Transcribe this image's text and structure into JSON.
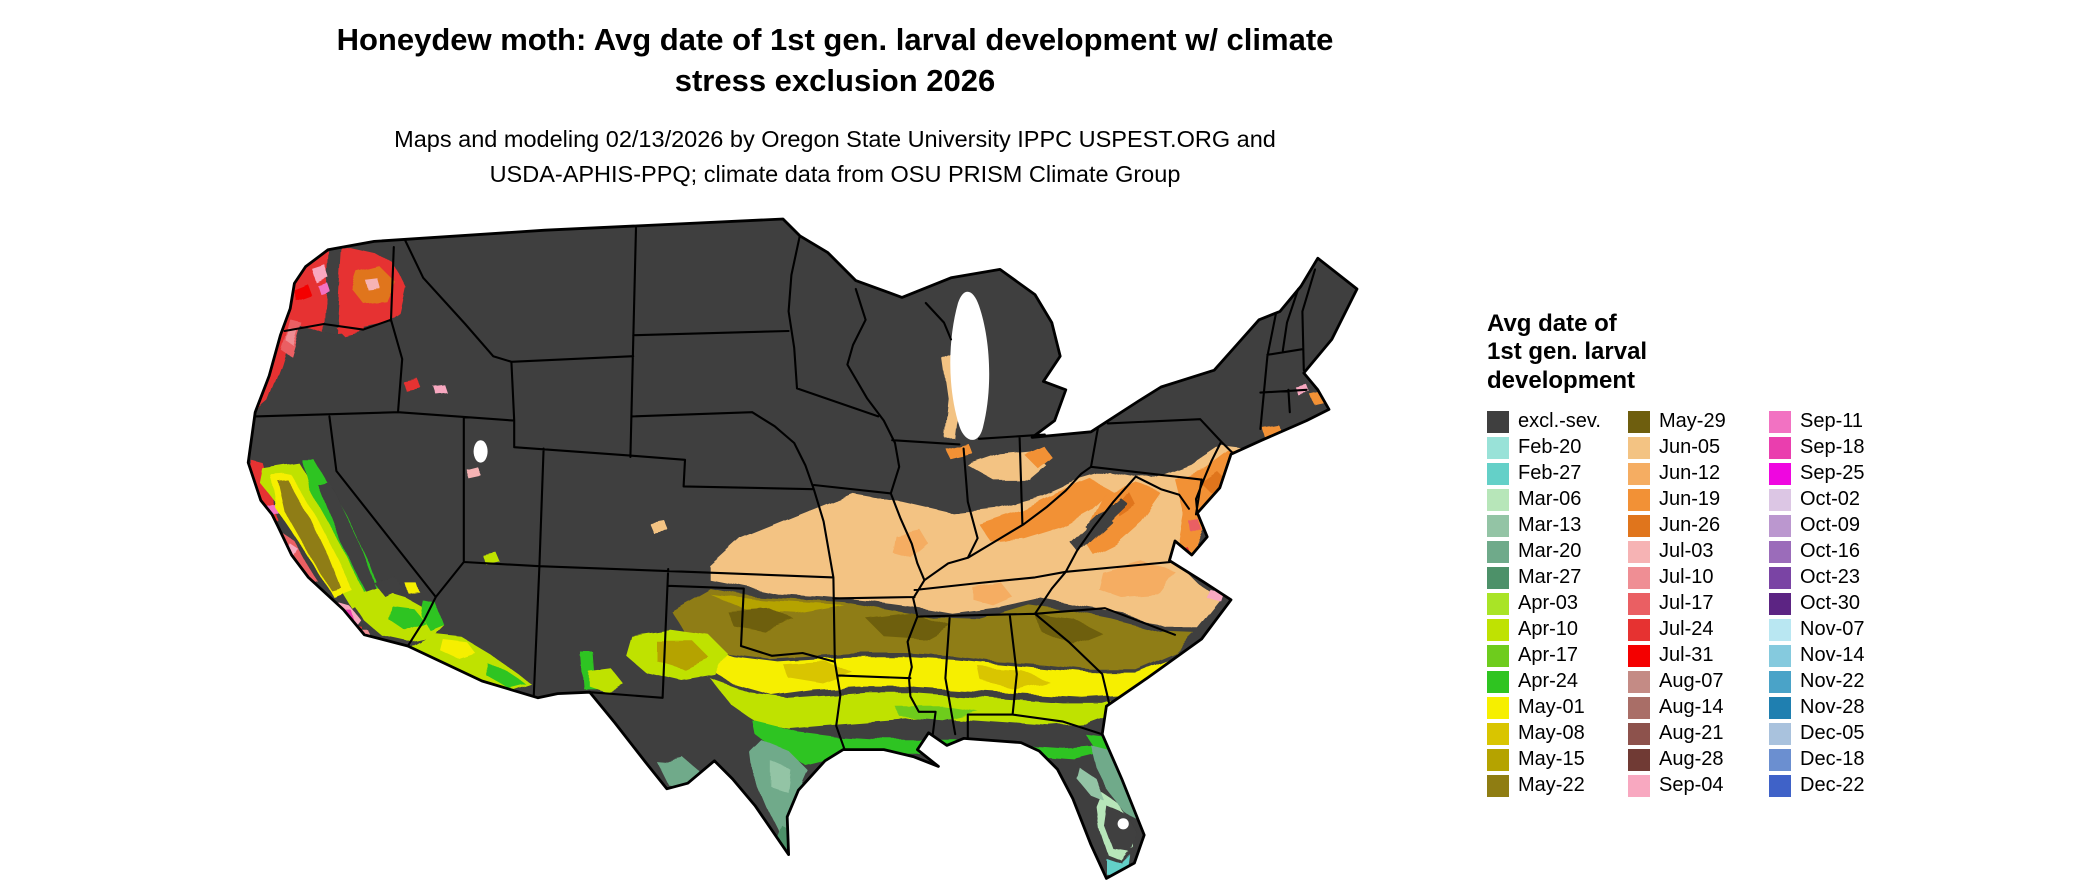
{
  "header": {
    "title_line1": "Honeydew moth: Avg date of 1st gen. larval development w/ climate",
    "title_line2": "stress exclusion 2026",
    "subtitle_line1": "Maps and modeling 02/13/2026 by Oregon State University IPPC USPEST.ORG and",
    "subtitle_line2": "USDA-APHIS-PPQ; climate data from OSU PRISM Climate Group"
  },
  "map": {
    "description": "Continental United States raster map of average date of first generation larval development with climate stress exclusion",
    "background_color": "#ffffff",
    "excluded_color": "#3f3f3f",
    "state_border_color": "#000000",
    "water_color": "#ffffff"
  },
  "legend": {
    "title_lines": [
      "Avg date of",
      "1st gen. larval",
      "development"
    ],
    "columns": [
      {
        "entries": [
          {
            "label": "excl.-sev.",
            "color": "#3f3f3f"
          },
          {
            "label": "Feb-20",
            "color": "#99e2d8"
          },
          {
            "label": "Feb-27",
            "color": "#64d0c8"
          },
          {
            "label": "Mar-06",
            "color": "#b7e6b9"
          },
          {
            "label": "Mar-13",
            "color": "#93c4a5"
          },
          {
            "label": "Mar-20",
            "color": "#6faa8a"
          },
          {
            "label": "Mar-27",
            "color": "#4d9169"
          },
          {
            "label": "Apr-03",
            "color": "#a9e426"
          },
          {
            "label": "Apr-10",
            "color": "#bfe202"
          },
          {
            "label": "Apr-17",
            "color": "#6ecc1d"
          },
          {
            "label": "Apr-24",
            "color": "#2fc421"
          },
          {
            "label": "May-01",
            "color": "#f6ef00"
          },
          {
            "label": "May-08",
            "color": "#d9c500"
          },
          {
            "label": "May-15",
            "color": "#b5a300"
          },
          {
            "label": "May-22",
            "color": "#8f7d12"
          }
        ]
      },
      {
        "entries": [
          {
            "label": "May-29",
            "color": "#6e5e0e"
          },
          {
            "label": "Jun-05",
            "color": "#f3c383"
          },
          {
            "label": "Jun-12",
            "color": "#f5ad62"
          },
          {
            "label": "Jun-19",
            "color": "#f29136"
          },
          {
            "label": "Jun-26",
            "color": "#e0751c"
          },
          {
            "label": "Jul-03",
            "color": "#f6b3b4"
          },
          {
            "label": "Jul-10",
            "color": "#ef8e94"
          },
          {
            "label": "Jul-17",
            "color": "#ea5f63"
          },
          {
            "label": "Jul-24",
            "color": "#e63231"
          },
          {
            "label": "Jul-31",
            "color": "#f40000"
          },
          {
            "label": "Aug-07",
            "color": "#c48b85"
          },
          {
            "label": "Aug-14",
            "color": "#a96e67"
          },
          {
            "label": "Aug-21",
            "color": "#8d524c"
          },
          {
            "label": "Aug-28",
            "color": "#703a34"
          },
          {
            "label": "Sep-04",
            "color": "#f8a8c0"
          }
        ]
      },
      {
        "entries": [
          {
            "label": "Sep-11",
            "color": "#f272c2"
          },
          {
            "label": "Sep-18",
            "color": "#ea3eae"
          },
          {
            "label": "Sep-25",
            "color": "#ef06e0"
          },
          {
            "label": "Oct-02",
            "color": "#dcc6e4"
          },
          {
            "label": "Oct-09",
            "color": "#bb97cf"
          },
          {
            "label": "Oct-16",
            "color": "#9b6cba"
          },
          {
            "label": "Oct-23",
            "color": "#7a44a4"
          },
          {
            "label": "Oct-30",
            "color": "#5c2483"
          },
          {
            "label": "Nov-07",
            "color": "#b9e7f2"
          },
          {
            "label": "Nov-14",
            "color": "#85cade"
          },
          {
            "label": "Nov-22",
            "color": "#4aa3c8"
          },
          {
            "label": "Nov-28",
            "color": "#1f7fb0"
          },
          {
            "label": "Dec-05",
            "color": "#a9c2dd"
          },
          {
            "label": "Dec-18",
            "color": "#6b8fd0"
          },
          {
            "label": "Dec-22",
            "color": "#3f62c8"
          }
        ]
      }
    ]
  }
}
